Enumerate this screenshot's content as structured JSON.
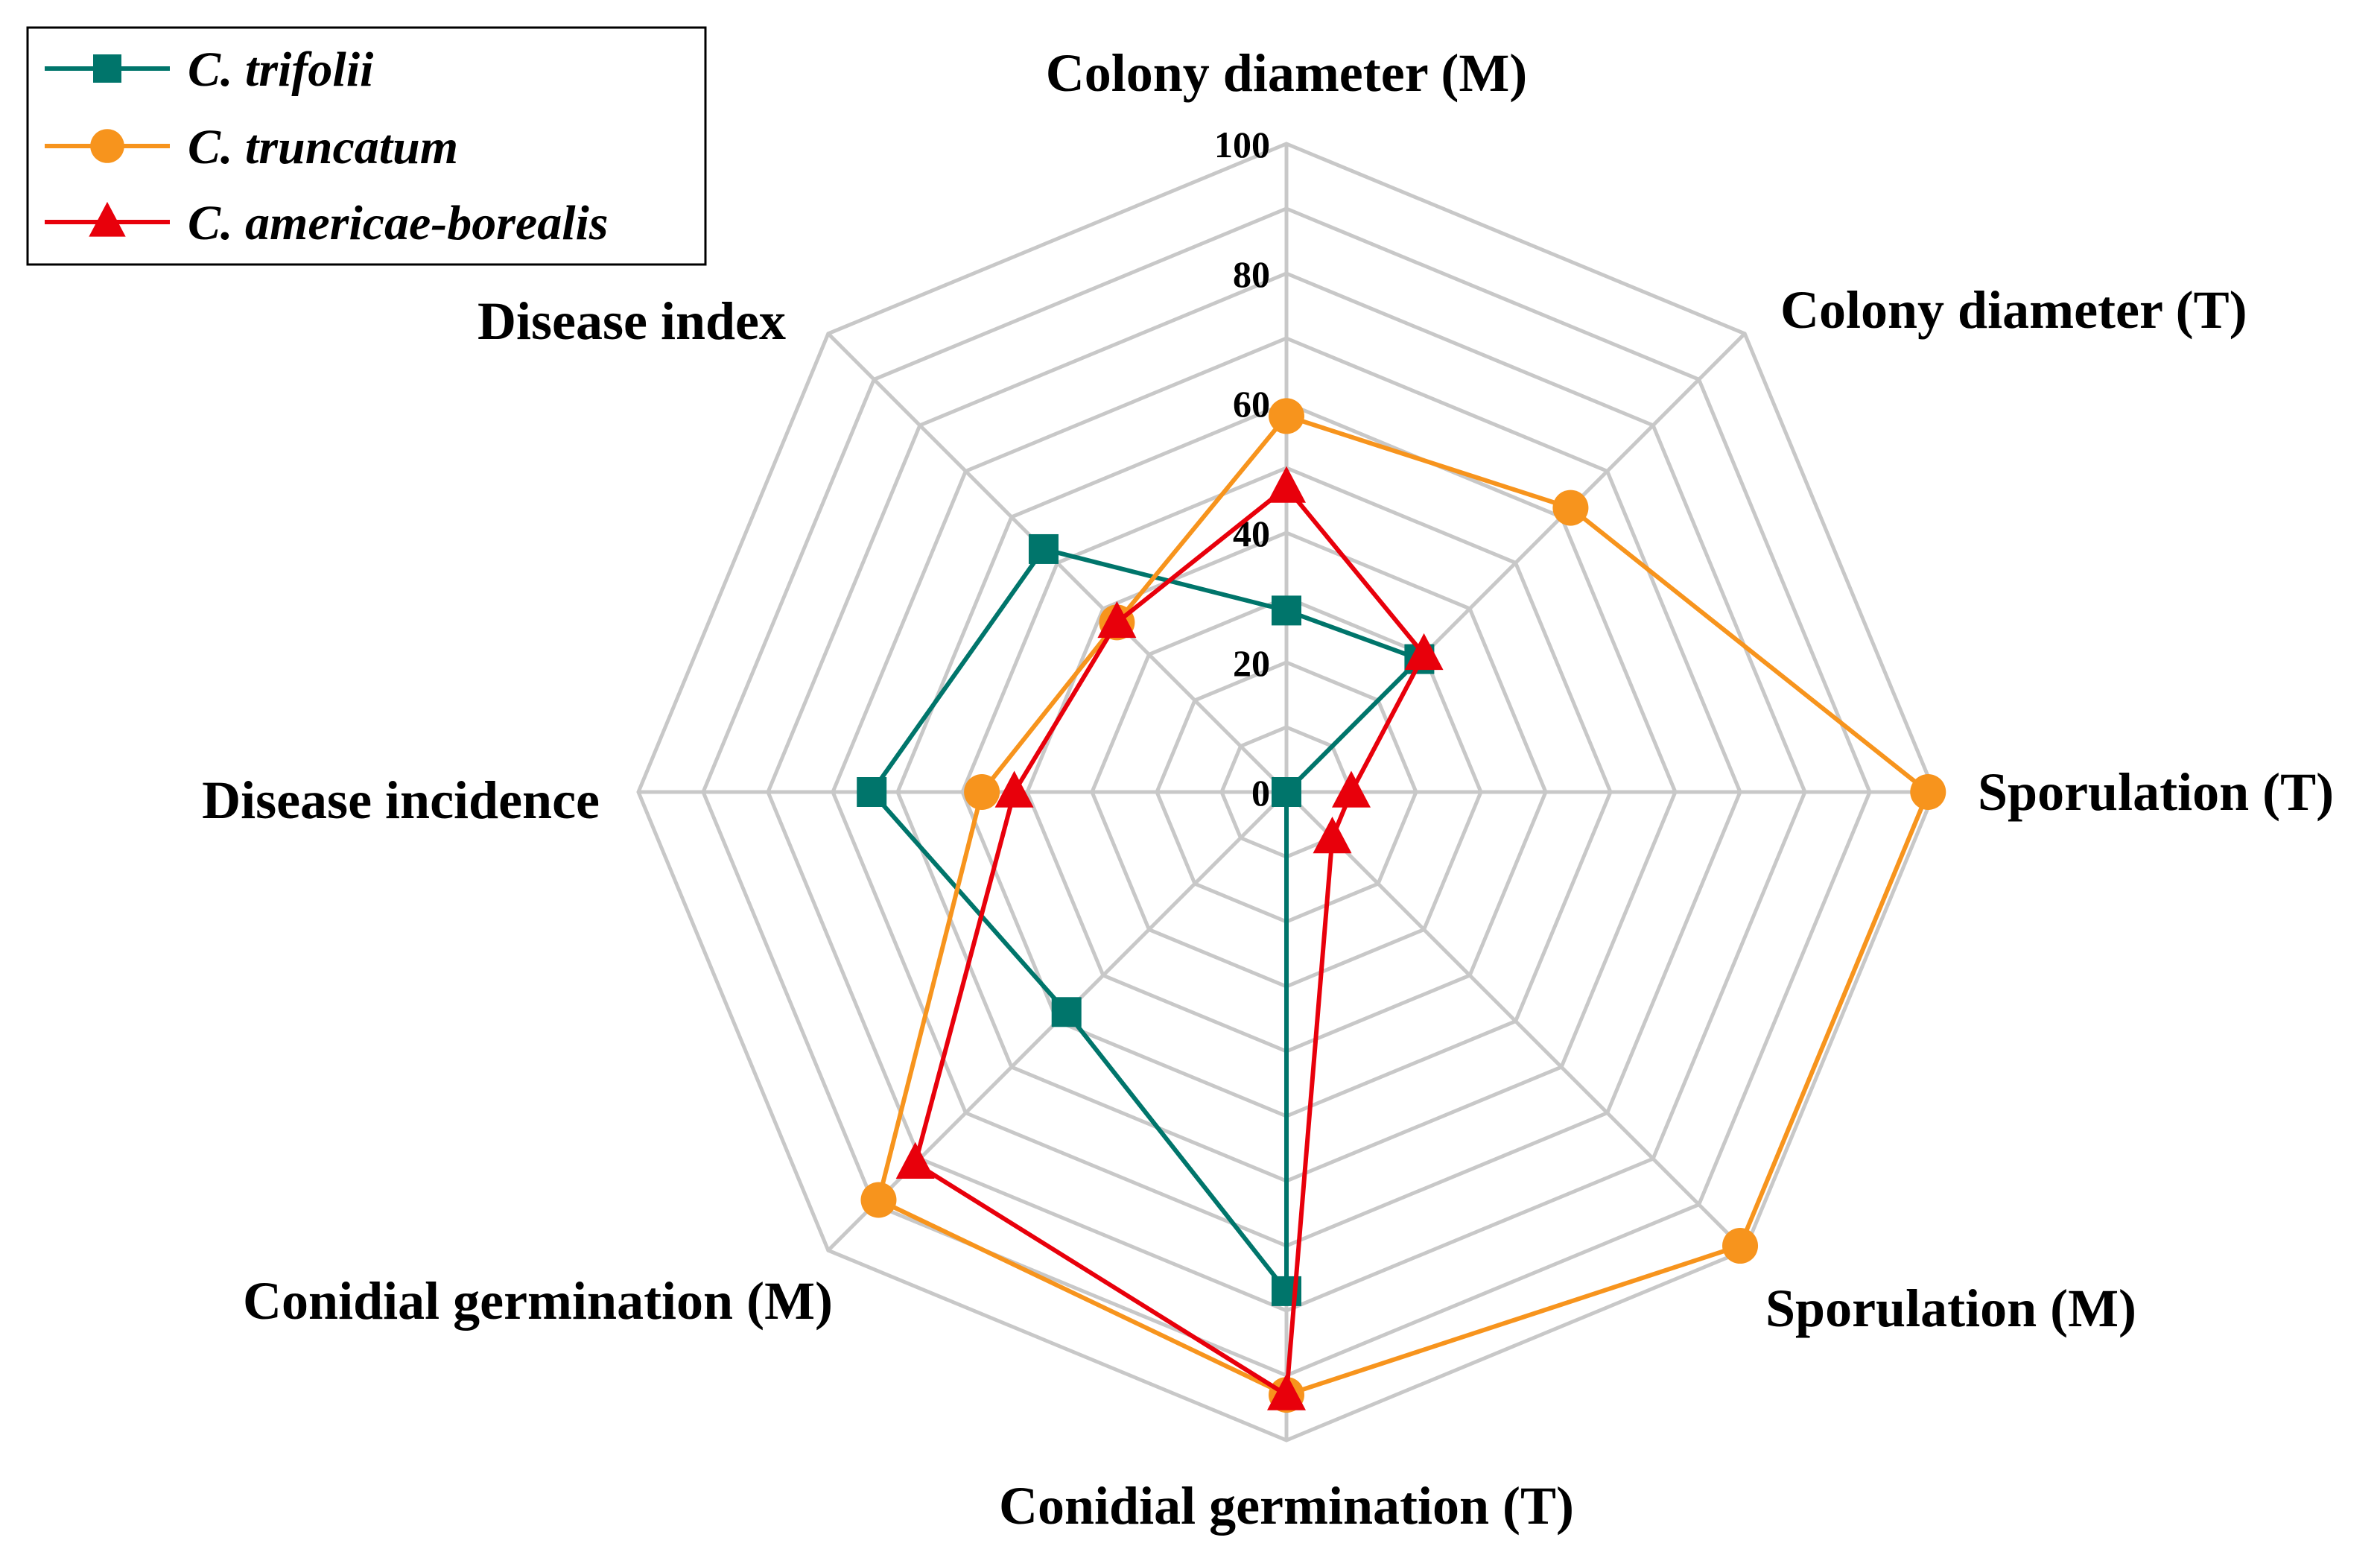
{
  "chart_data": {
    "type": "radar",
    "title": "",
    "axes": [
      "Colony diameter (M)",
      "Colony diameter (T)",
      "Sporulation (T)",
      "Sporulation (M)",
      "Conidial germination (T)",
      "Conidial germination (M)",
      "Disease incidence",
      "Disease index"
    ],
    "range": [
      0,
      100
    ],
    "ticks": [
      "0",
      "20",
      "40",
      "60",
      "80",
      "100"
    ],
    "tick_values": [
      0,
      20,
      40,
      60,
      80,
      100
    ],
    "grid": true,
    "legend_position": "top-left",
    "series": [
      {
        "name": "C. trifolii",
        "color": "#00756b",
        "marker": "square",
        "values": [
          28,
          29,
          0,
          0,
          77,
          48,
          64,
          53
        ]
      },
      {
        "name": "C. truncatum",
        "color": "#f7941d",
        "marker": "circle",
        "values": [
          58,
          62,
          99,
          99,
          93,
          89,
          47,
          37
        ]
      },
      {
        "name": "C. americae-borealis",
        "color": "#e8000b",
        "marker": "triangle",
        "values": [
          47,
          30,
          10,
          10,
          93,
          81,
          42,
          37
        ]
      }
    ]
  }
}
